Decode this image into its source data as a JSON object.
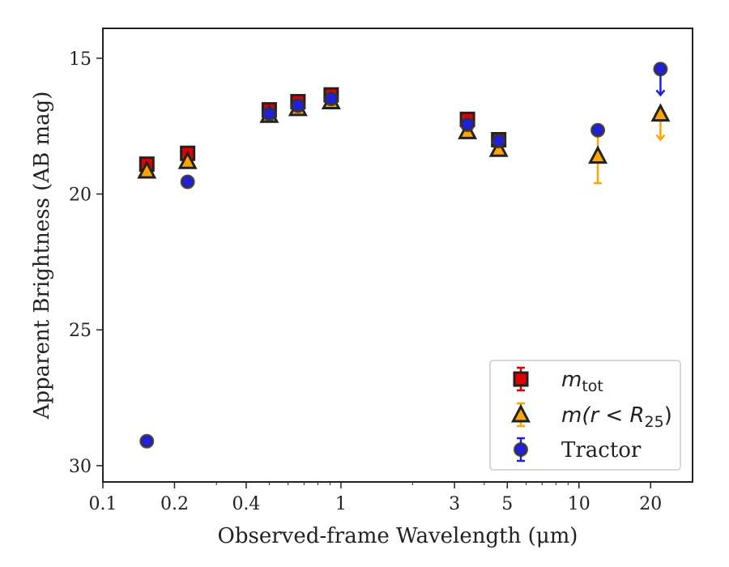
{
  "chart_data": {
    "type": "scatter",
    "xlabel": "Observed-frame Wavelength (μm)",
    "ylabel": "Apparent Brightness (AB mag)",
    "x_scale": "log",
    "y_inverted": true,
    "xlim": [
      0.1,
      30
    ],
    "ylim": [
      30.6,
      13.9
    ],
    "x_ticks": [
      0.1,
      0.2,
      0.4,
      1,
      3,
      5,
      10,
      20
    ],
    "x_tick_labels": [
      "0.1",
      "0.2",
      "0.4",
      "1",
      "3",
      "5",
      "10",
      "20"
    ],
    "y_ticks": [
      15,
      20,
      25,
      30
    ],
    "y_tick_labels": [
      "15",
      "20",
      "25",
      "30"
    ],
    "grid": false,
    "legend_position": "bottom-right",
    "series": [
      {
        "name_main": "m",
        "name_sub": "tot",
        "marker": "square",
        "color": "#e00000",
        "edge_color": "#222222",
        "points": [
          {
            "x": 0.153,
            "y": 18.9,
            "err": 0.15
          },
          {
            "x": 0.227,
            "y": 18.5,
            "err": 0.15
          },
          {
            "x": 0.5,
            "y": 16.9,
            "err": 0.2
          },
          {
            "x": 0.66,
            "y": 16.6,
            "err": 0.2
          },
          {
            "x": 0.91,
            "y": 16.35,
            "err": 0.2
          },
          {
            "x": 3.4,
            "y": 17.25,
            "err": 0.15
          },
          {
            "x": 4.6,
            "y": 18.0,
            "err": 0.1
          }
        ]
      },
      {
        "name_main": "m(r < R",
        "name_sub": "25",
        "name_suffix": ")",
        "marker": "triangle",
        "color": "#ffa500",
        "edge_color": "#222222",
        "points": [
          {
            "x": 0.153,
            "y": 19.15,
            "err": 0.1
          },
          {
            "x": 0.227,
            "y": 18.8,
            "err": 0.1
          },
          {
            "x": 0.5,
            "y": 17.1,
            "err": 0.1
          },
          {
            "x": 0.66,
            "y": 16.85,
            "err": 0.1
          },
          {
            "x": 0.91,
            "y": 16.6,
            "err": 0.1
          },
          {
            "x": 3.4,
            "y": 17.7,
            "err": 0.1
          },
          {
            "x": 4.6,
            "y": 18.35,
            "err": 0.1
          },
          {
            "x": 12.0,
            "y": 18.6,
            "err": 1.0
          },
          {
            "x": 22.0,
            "y": 17.05,
            "upper_limit": true
          }
        ]
      },
      {
        "name": "Tractor",
        "marker": "circle",
        "color": "#1f1fdd",
        "edge_color": "#333333",
        "points": [
          {
            "x": 0.153,
            "y": 29.1,
            "err": 0.05
          },
          {
            "x": 0.227,
            "y": 19.55,
            "err": 0.05
          },
          {
            "x": 0.5,
            "y": 17.05,
            "err": 0.05
          },
          {
            "x": 0.66,
            "y": 16.75,
            "err": 0.05
          },
          {
            "x": 0.91,
            "y": 16.5,
            "err": 0.05
          },
          {
            "x": 3.4,
            "y": 17.45,
            "err": 0.05
          },
          {
            "x": 4.6,
            "y": 18.05,
            "err": 0.05
          },
          {
            "x": 12.0,
            "y": 17.65,
            "err": 0.05
          },
          {
            "x": 22.0,
            "y": 15.4,
            "upper_limit": true
          }
        ]
      }
    ]
  }
}
